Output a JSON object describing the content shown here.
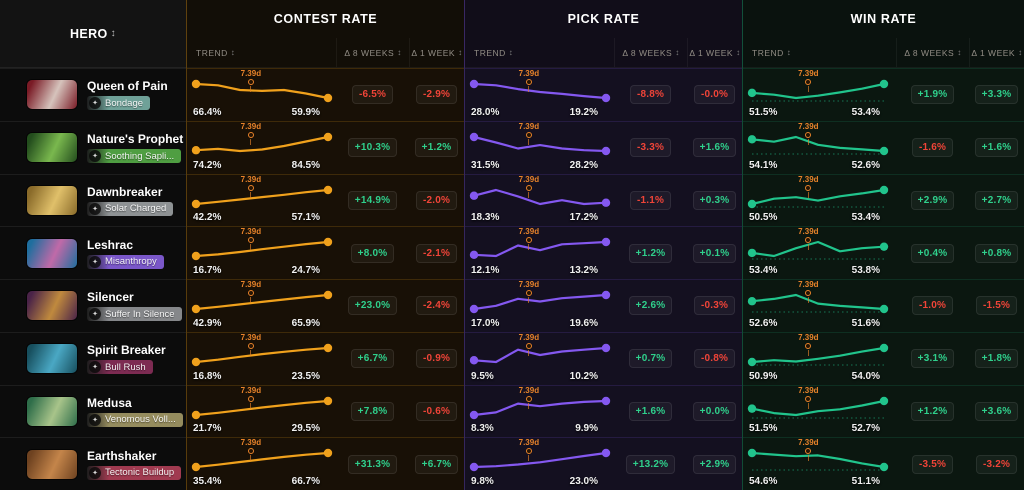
{
  "header": {
    "hero_label": "HERO",
    "sort_icon": "↕",
    "trend_label": "TREND",
    "d8w_label": "Δ 8 WEEKS",
    "d1w_label": "Δ 1 WEEK"
  },
  "sections": [
    {
      "title": "CONTEST RATE",
      "accent": "#f0a11c"
    },
    {
      "title": "PICK RATE",
      "accent": "#8458f0"
    },
    {
      "title": "WIN RATE",
      "accent": "#21c48c"
    }
  ],
  "patch_label": "7.39d",
  "patch_color": "#e8832a",
  "delta_colors": {
    "positive": "#2fd08c",
    "negative": "#f04438"
  },
  "rows": [
    {
      "hero": "Queen of Pain",
      "facet": "Bondage",
      "facet_color": "#6fa198",
      "portrait": [
        "#7a1b26",
        "#d6c3bc"
      ],
      "contest": {
        "start_label": "66.4%",
        "end_label": "59.9%",
        "points": [
          66.4,
          65.8,
          63.6,
          63.2,
          63.6,
          62.0,
          59.9
        ],
        "d8w": "-6.5%",
        "d1w": "-2.9%"
      },
      "pick": {
        "start_label": "28.0%",
        "end_label": "19.2%",
        "points": [
          28.0,
          27.2,
          24.8,
          23.0,
          21.8,
          20.4,
          19.2
        ],
        "d8w": "-8.8%",
        "d1w": "-0.0%"
      },
      "win": {
        "start_label": "51.5%",
        "end_label": "53.4%",
        "points": [
          51.5,
          51.1,
          50.4,
          50.9,
          51.6,
          52.4,
          53.4
        ],
        "d8w": "+1.9%",
        "d1w": "+3.3%"
      }
    },
    {
      "hero": "Nature's Prophet",
      "facet": "Soothing Sapli...",
      "facet_color": "#4f9e42",
      "portrait": [
        "#234d1d",
        "#7ab84e"
      ],
      "contest": {
        "start_label": "74.2%",
        "end_label": "84.5%",
        "points": [
          74.2,
          75.2,
          73.6,
          74.8,
          77.5,
          81.0,
          84.5
        ],
        "d8w": "+10.3%",
        "d1w": "+1.2%"
      },
      "pick": {
        "start_label": "31.5%",
        "end_label": "28.2%",
        "points": [
          31.5,
          30.2,
          28.8,
          29.6,
          28.8,
          28.4,
          28.2
        ],
        "d8w": "-3.3%",
        "d1w": "+1.6%"
      },
      "win": {
        "start_label": "54.1%",
        "end_label": "52.6%",
        "points": [
          54.1,
          53.8,
          54.4,
          53.4,
          53.0,
          52.8,
          52.6
        ],
        "d8w": "-1.6%",
        "d1w": "+1.6%"
      }
    },
    {
      "hero": "Dawnbreaker",
      "facet": "Solar Charged",
      "facet_color": "#8e9294",
      "portrait": [
        "#8a6b2a",
        "#e0c06a"
      ],
      "contest": {
        "start_label": "42.2%",
        "end_label": "57.1%",
        "points": [
          42.2,
          44.5,
          47.0,
          49.5,
          52.0,
          54.8,
          57.1
        ],
        "d8w": "+14.9%",
        "d1w": "-2.0%"
      },
      "pick": {
        "start_label": "18.3%",
        "end_label": "17.2%",
        "points": [
          18.3,
          19.2,
          18.2,
          17.0,
          17.6,
          17.0,
          17.2
        ],
        "d8w": "-1.1%",
        "d1w": "+0.3%"
      },
      "win": {
        "start_label": "50.5%",
        "end_label": "53.4%",
        "points": [
          50.5,
          51.6,
          51.9,
          51.2,
          52.1,
          52.7,
          53.4
        ],
        "d8w": "+2.9%",
        "d1w": "+2.7%"
      }
    },
    {
      "hero": "Leshrac",
      "facet": "Misanthropy",
      "facet_color": "#7a57c9",
      "portrait": [
        "#1f6e9e",
        "#c06aa8"
      ],
      "contest": {
        "start_label": "16.7%",
        "end_label": "24.7%",
        "points": [
          16.7,
          17.6,
          19.0,
          20.6,
          22.0,
          23.5,
          24.7
        ],
        "d8w": "+8.0%",
        "d1w": "-2.1%"
      },
      "pick": {
        "start_label": "12.1%",
        "end_label": "13.2%",
        "points": [
          12.1,
          12.0,
          12.9,
          12.5,
          13.0,
          13.1,
          13.2
        ],
        "d8w": "+1.2%",
        "d1w": "+0.1%"
      },
      "win": {
        "start_label": "53.4%",
        "end_label": "53.8%",
        "points": [
          53.4,
          53.2,
          53.7,
          54.1,
          53.5,
          53.7,
          53.8
        ],
        "d8w": "+0.4%",
        "d1w": "+0.8%"
      }
    },
    {
      "hero": "Silencer",
      "facet": "Suffer In Silence",
      "facet_color": "#85878a",
      "portrait": [
        "#4a2348",
        "#c08a3e"
      ],
      "contest": {
        "start_label": "42.9%",
        "end_label": "65.9%",
        "points": [
          42.9,
          46.5,
          50.5,
          54.5,
          58.5,
          62.5,
          65.9
        ],
        "d8w": "+23.0%",
        "d1w": "-2.4%"
      },
      "pick": {
        "start_label": "17.0%",
        "end_label": "19.6%",
        "points": [
          17.0,
          17.6,
          18.9,
          18.4,
          19.0,
          19.3,
          19.6
        ],
        "d8w": "+2.6%",
        "d1w": "-0.3%"
      },
      "win": {
        "start_label": "52.6%",
        "end_label": "51.6%",
        "points": [
          52.6,
          52.9,
          53.4,
          52.3,
          52.0,
          51.8,
          51.6
        ],
        "d8w": "-1.0%",
        "d1w": "-1.5%"
      }
    },
    {
      "hero": "Spirit Breaker",
      "facet": "Bull Rush",
      "facet_color": "#7d2b52",
      "portrait": [
        "#174f5e",
        "#4aa8c4"
      ],
      "contest": {
        "start_label": "16.8%",
        "end_label": "23.5%",
        "points": [
          16.8,
          17.9,
          19.3,
          20.6,
          21.7,
          22.7,
          23.5
        ],
        "d8w": "+6.7%",
        "d1w": "-0.9%"
      },
      "pick": {
        "start_label": "9.5%",
        "end_label": "10.2%",
        "points": [
          9.5,
          9.4,
          10.1,
          9.8,
          10.0,
          10.1,
          10.2
        ],
        "d8w": "+0.7%",
        "d1w": "-0.8%"
      },
      "win": {
        "start_label": "50.9%",
        "end_label": "54.0%",
        "points": [
          50.9,
          51.3,
          51.0,
          51.6,
          52.3,
          53.2,
          54.0
        ],
        "d8w": "+3.1%",
        "d1w": "+1.8%"
      }
    },
    {
      "hero": "Medusa",
      "facet": "Venomous Voll...",
      "facet_color": "#958c5e",
      "portrait": [
        "#2f6e4a",
        "#a8c48a"
      ],
      "contest": {
        "start_label": "21.7%",
        "end_label": "29.5%",
        "points": [
          21.7,
          22.9,
          24.4,
          25.9,
          27.2,
          28.5,
          29.5
        ],
        "d8w": "+7.8%",
        "d1w": "-0.6%"
      },
      "pick": {
        "start_label": "8.3%",
        "end_label": "9.9%",
        "points": [
          8.3,
          8.6,
          9.6,
          9.3,
          9.6,
          9.8,
          9.9
        ],
        "d8w": "+1.6%",
        "d1w": "+0.0%"
      },
      "win": {
        "start_label": "51.5%",
        "end_label": "52.7%",
        "points": [
          51.5,
          50.8,
          50.5,
          51.1,
          51.4,
          52.0,
          52.7
        ],
        "d8w": "+1.2%",
        "d1w": "+3.6%"
      }
    },
    {
      "hero": "Earthshaker",
      "facet": "Tectonic Buildup",
      "facet_color": "#a03a50",
      "portrait": [
        "#6e4220",
        "#c4854a"
      ],
      "contest": {
        "start_label": "35.4%",
        "end_label": "66.7%",
        "points": [
          35.4,
          40.5,
          46.5,
          52.5,
          58.0,
          63.0,
          66.7
        ],
        "d8w": "+31.3%",
        "d1w": "+6.7%"
      },
      "pick": {
        "start_label": "9.8%",
        "end_label": "23.0%",
        "points": [
          9.8,
          10.6,
          12.2,
          14.2,
          17.2,
          20.2,
          23.0
        ],
        "d8w": "+13.2%",
        "d1w": "+2.9%"
      },
      "win": {
        "start_label": "54.6%",
        "end_label": "51.1%",
        "points": [
          54.6,
          54.2,
          53.8,
          54.0,
          53.1,
          52.0,
          51.1
        ],
        "d8w": "-3.5%",
        "d1w": "-3.2%"
      }
    }
  ]
}
